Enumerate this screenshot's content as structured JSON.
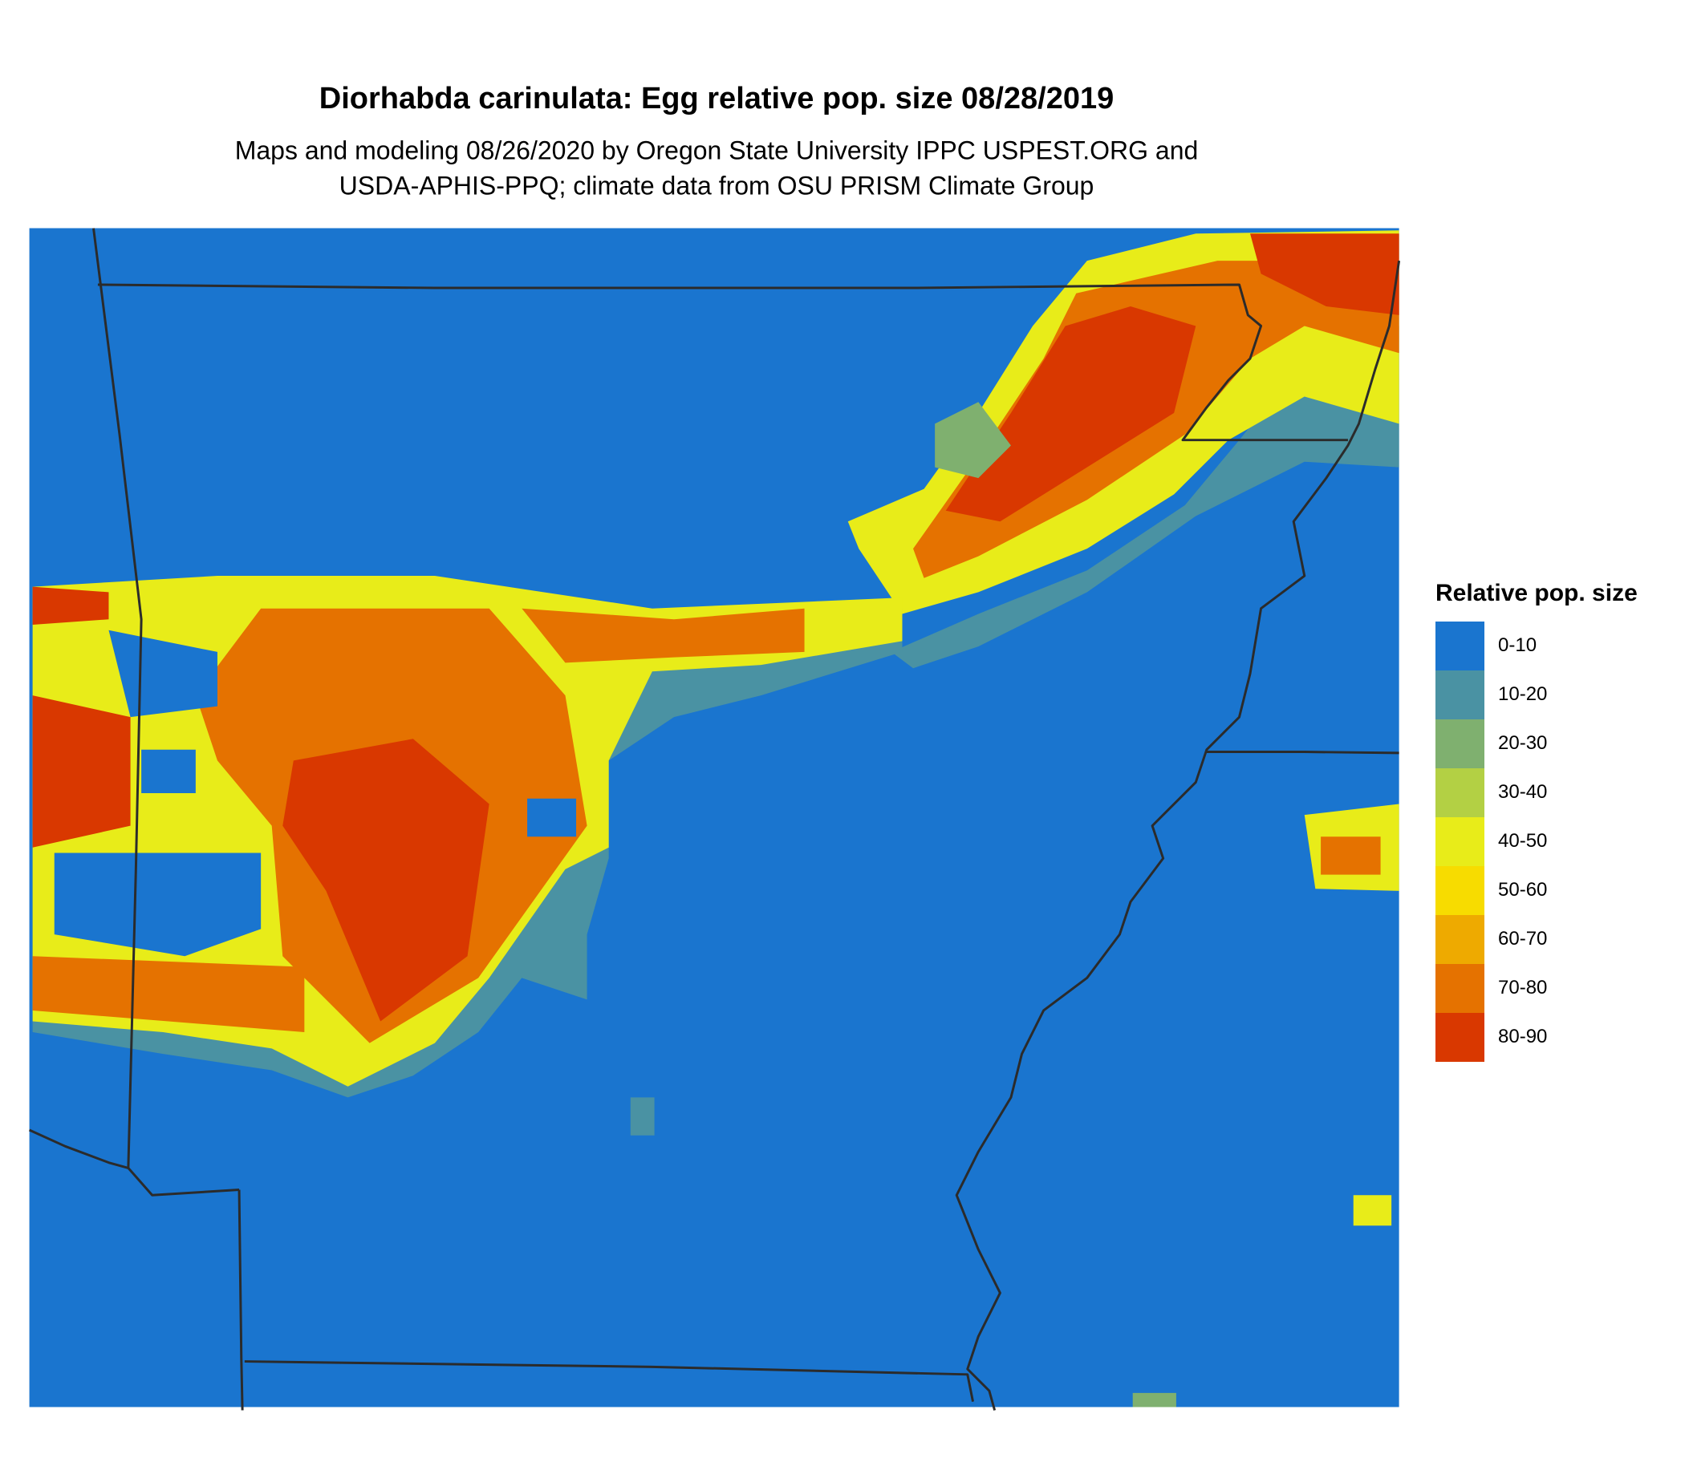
{
  "title": "Diorhabda carinulata: Egg relative pop. size 08/28/2019",
  "subtitle": [
    "Maps and modeling 08/26/2020 by Oregon State University IPPC USPEST.ORG and",
    "USDA-APHIS-PPQ; climate data from OSU PRISM Climate Group"
  ],
  "legend": {
    "title": "Relative pop. size",
    "items": [
      {
        "label": "0-10",
        "color": "#1a75cf"
      },
      {
        "label": "10-20",
        "color": "#4a92a3"
      },
      {
        "label": "20-30",
        "color": "#7fb06f"
      },
      {
        "label": "30-40",
        "color": "#b3d044"
      },
      {
        "label": "40-50",
        "color": "#e8ec19"
      },
      {
        "label": "50-60",
        "color": "#f7dc00"
      },
      {
        "label": "60-70",
        "color": "#eeaa00"
      },
      {
        "label": "70-80",
        "color": "#e57200"
      },
      {
        "label": "80-90",
        "color": "#d93800"
      }
    ]
  }
}
